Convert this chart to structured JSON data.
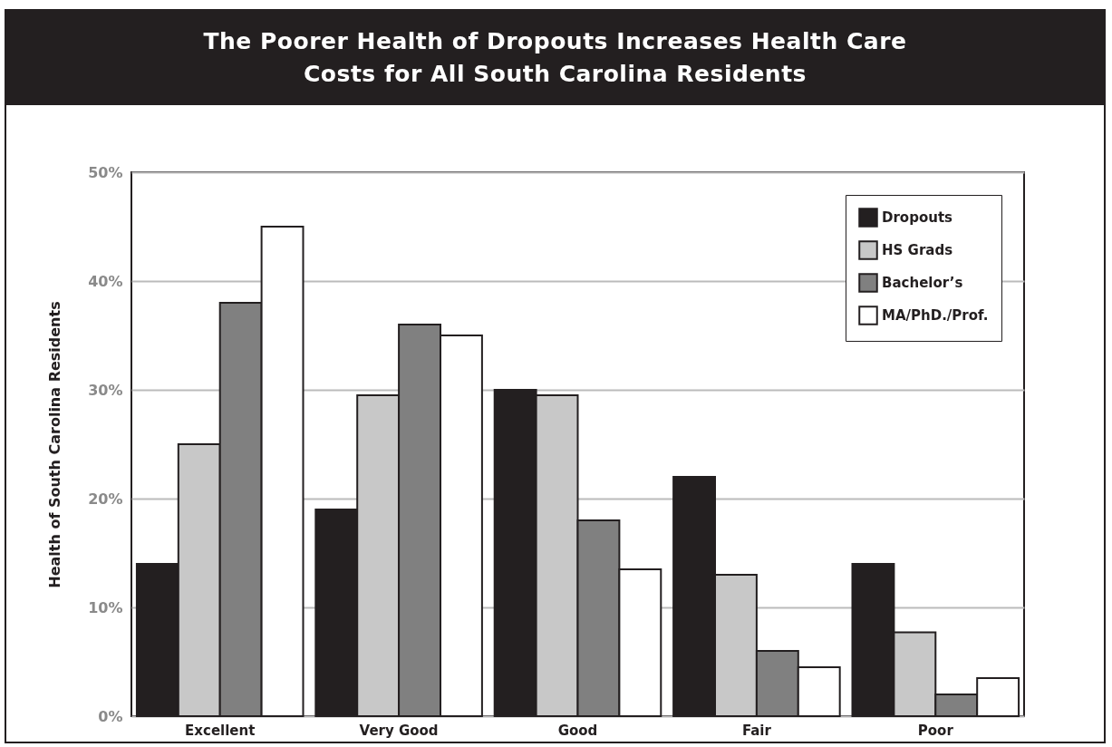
{
  "chart_data": {
    "type": "bar",
    "title": "The Poorer Health of Dropouts Increases Health Care Costs for All South Carolina Residents",
    "ylabel": "Health of South Carolina Residents",
    "categories": [
      "Excellent",
      "Very Good",
      "Good",
      "Fair",
      "Poor"
    ],
    "series": [
      {
        "name": "Dropouts",
        "color": "#231f20",
        "values": [
          14,
          19,
          30,
          22,
          14
        ]
      },
      {
        "name": "HS Grads",
        "color": "#c8c8c8",
        "values": [
          25,
          29.5,
          29.5,
          13,
          7.7
        ]
      },
      {
        "name": "Bachelor’s",
        "color": "#808080",
        "values": [
          38,
          36,
          18,
          6,
          2
        ]
      },
      {
        "name": "MA/PhD./Prof.",
        "color": "#ffffff",
        "values": [
          45,
          35,
          13.5,
          4.5,
          3.5
        ]
      }
    ],
    "ylim": [
      0,
      50
    ],
    "yticks": [
      {
        "value": 0,
        "label": "0%"
      },
      {
        "value": 10,
        "label": "10%"
      },
      {
        "value": 20,
        "label": "20%"
      },
      {
        "value": 30,
        "label": "30%"
      },
      {
        "value": 40,
        "label": "40%"
      },
      {
        "value": 50,
        "label": "50%"
      }
    ],
    "grid": "y",
    "legend": "top right"
  }
}
